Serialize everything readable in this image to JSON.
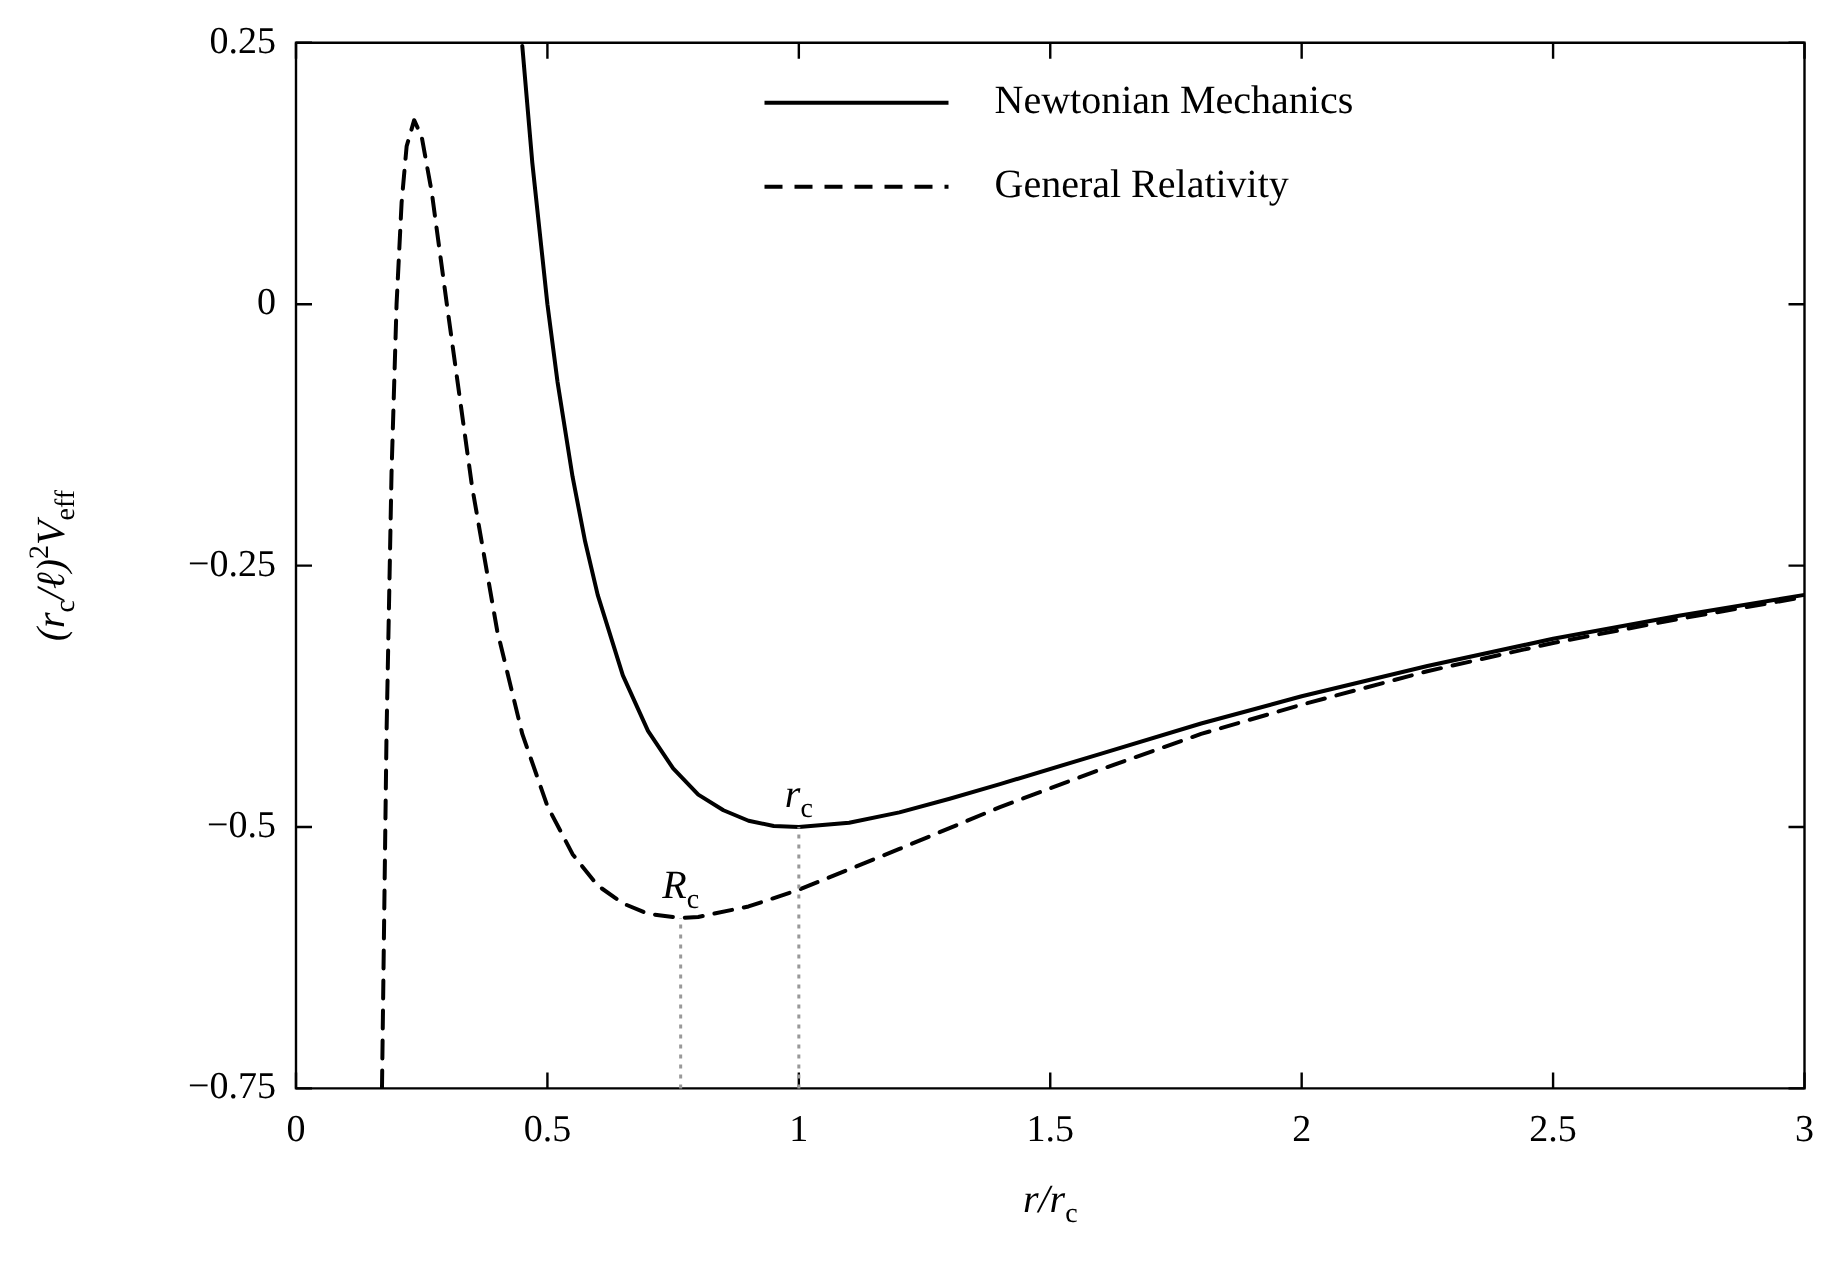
{
  "chart_data": {
    "type": "line",
    "xlabel": "r/r$_{c}$",
    "ylabel": "(r$_{c}$/ℓ)$^{2}$V$_{eff}$",
    "xlim": [
      0,
      3
    ],
    "xticks": [
      0,
      0.5,
      1,
      1.5,
      2,
      2.5,
      3
    ],
    "ylim": [
      -0.75,
      0.25
    ],
    "yticks": [
      {
        "value": -0.75,
        "label": "−0.75"
      },
      {
        "value": -0.5,
        "label": "−0.5"
      },
      {
        "value": -0.25,
        "label": "−0.25"
      },
      0,
      0.25
    ],
    "grid": false,
    "legend": "top right",
    "marker": "none",
    "series": [
      {
        "name": "Newtonian Mechanics",
        "color": "#000000",
        "line_style": "solid",
        "x": [
          0.45,
          0.47,
          0.5,
          0.52,
          0.55,
          0.575,
          0.6,
          0.65,
          0.7,
          0.75,
          0.8,
          0.85,
          0.9,
          0.95,
          1,
          1.1,
          1.2,
          1.3,
          1.4,
          1.6,
          1.8,
          2,
          2.25,
          2.5,
          2.75,
          3
        ],
        "values": [
          0.247,
          0.135,
          0,
          -0.074,
          -0.165,
          -0.227,
          -0.278,
          -0.355,
          -0.408,
          -0.444,
          -0.469,
          -0.484,
          -0.494,
          -0.499,
          -0.5,
          -0.496,
          -0.486,
          -0.473,
          -0.459,
          -0.43,
          -0.401,
          -0.375,
          -0.346,
          -0.32,
          -0.298,
          -0.278
        ]
      },
      {
        "name": "General Relativity",
        "color": "#000000",
        "line_style": "dashed",
        "x": [
          0.171,
          0.18,
          0.19,
          0.2,
          0.21,
          0.22,
          0.235,
          0.25,
          0.27,
          0.3,
          0.35,
          0.4,
          0.45,
          0.5,
          0.55,
          0.6,
          0.65,
          0.7,
          0.75,
          0.765,
          0.8,
          0.9,
          1,
          1.2,
          1.4,
          1.6,
          1.8,
          2,
          2.25,
          2.5,
          2.75,
          3
        ],
        "values": [
          -0.75,
          -0.412,
          -0.161,
          0,
          0.097,
          0.151,
          0.176,
          0.16,
          0.107,
          0,
          -0.174,
          -0.312,
          -0.411,
          -0.48,
          -0.526,
          -0.556,
          -0.573,
          -0.583,
          -0.586,
          -0.587,
          -0.586,
          -0.576,
          -0.56,
          -0.521,
          -0.481,
          -0.445,
          -0.411,
          -0.383,
          -0.351,
          -0.324,
          -0.301,
          -0.28
        ]
      }
    ],
    "annotations": [
      {
        "text": "R$_{c}$",
        "x": 0.765,
        "y": -0.587
      },
      {
        "text": "r$_{c}$",
        "x": 1,
        "y": -0.5
      }
    ]
  }
}
